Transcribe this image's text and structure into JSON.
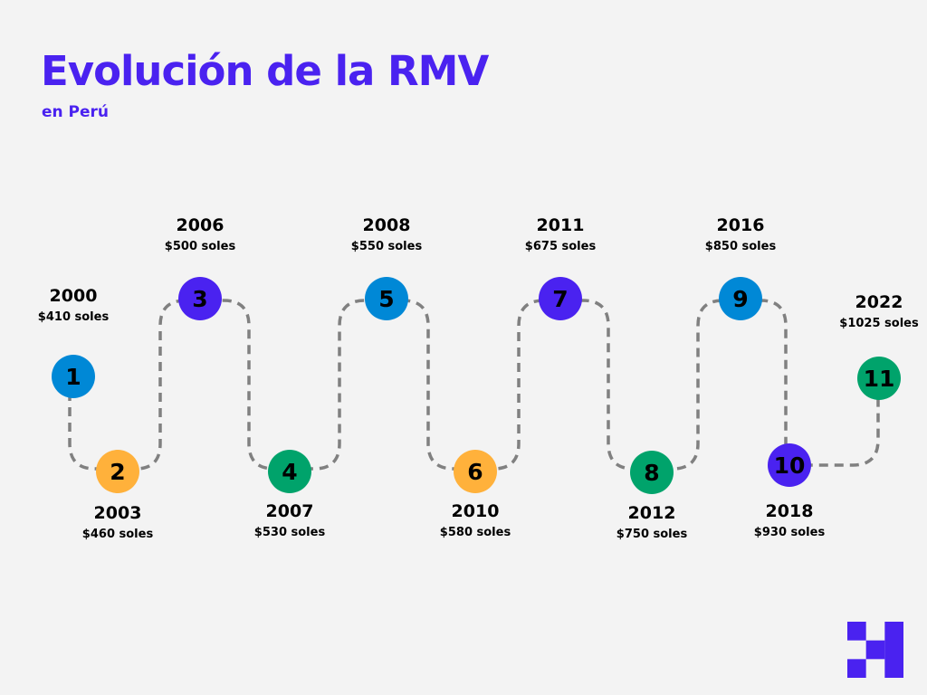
{
  "header": {
    "title": "Evolución de la RMV",
    "subtitle": "en Perú"
  },
  "colors": {
    "blue": "#0088d6",
    "orange": "#ffb13b",
    "purple": "#4a22f0",
    "green": "#00a36b",
    "path": "#808080"
  },
  "timeline": [
    {
      "number": "1",
      "year": "2000",
      "value": "$410 soles",
      "color": "#0088d6"
    },
    {
      "number": "2",
      "year": "2003",
      "value": "$460 soles",
      "color": "#ffb13b"
    },
    {
      "number": "3",
      "year": "2006",
      "value": "$500 soles",
      "color": "#4a22f0"
    },
    {
      "number": "4",
      "year": "2007",
      "value": "$530 soles",
      "color": "#00a36b"
    },
    {
      "number": "5",
      "year": "2008",
      "value": "$550 soles",
      "color": "#0088d6"
    },
    {
      "number": "6",
      "year": "2010",
      "value": "$580 soles",
      "color": "#ffb13b"
    },
    {
      "number": "7",
      "year": "2011",
      "value": "$675 soles",
      "color": "#4a22f0"
    },
    {
      "number": "8",
      "year": "2012",
      "value": "$750 soles",
      "color": "#00a36b"
    },
    {
      "number": "9",
      "year": "2016",
      "value": "$850 soles",
      "color": "#0088d6"
    },
    {
      "number": "10",
      "year": "2018",
      "value": "$930 soles",
      "color": "#4a22f0"
    },
    {
      "number": "11",
      "year": "2022",
      "value": "$1025 soles",
      "color": "#00a36b"
    }
  ]
}
